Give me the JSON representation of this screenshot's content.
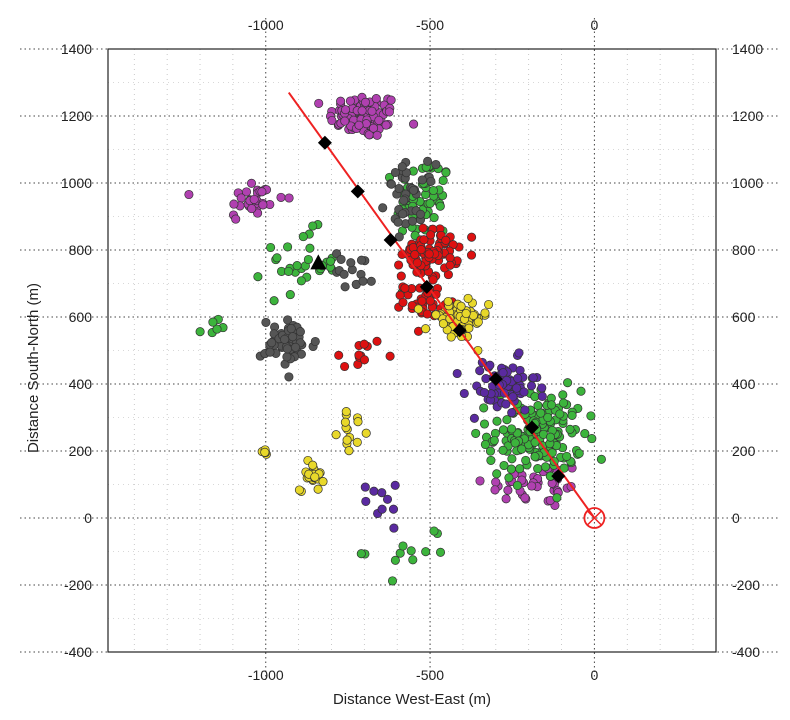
{
  "chart_data": {
    "type": "scatter",
    "xlabel": "Distance West-East (m)",
    "ylabel": "Distance South-North (m)",
    "xlim": [
      -1480,
      370
    ],
    "ylim": [
      -400,
      1400
    ],
    "x_ticks": [
      -1000,
      -500,
      0
    ],
    "y_ticks": [
      -400,
      -200,
      0,
      200,
      400,
      600,
      800,
      1000,
      1200,
      1400
    ],
    "grid": true,
    "grid_style": "dotted",
    "ticks_on_all_sides": true,
    "colors": {
      "purple": "#b040b0",
      "green": "#3cb43c",
      "gray": "#555555",
      "red": "#dd1111",
      "yellow": "#e8d82a",
      "indigo": "#5a2aa0",
      "marker_edge": "#222222",
      "trend_line": "#ee2222"
    },
    "clusters": [
      {
        "color": "purple",
        "center": [
          -700,
          1200
        ],
        "spread": [
          90,
          55
        ],
        "count": 90
      },
      {
        "color": "purple",
        "center": [
          -1040,
          950
        ],
        "spread": [
          80,
          55
        ],
        "count": 30
      },
      {
        "color": "purple",
        "center": [
          -180,
          100
        ],
        "spread": [
          130,
          60
        ],
        "count": 40
      },
      {
        "color": "green",
        "center": [
          -520,
          950
        ],
        "spread": [
          70,
          110
        ],
        "count": 55
      },
      {
        "color": "green",
        "center": [
          -890,
          760
        ],
        "spread": [
          90,
          80
        ],
        "count": 30
      },
      {
        "color": "green",
        "center": [
          -180,
          250
        ],
        "spread": [
          120,
          110
        ],
        "count": 170
      },
      {
        "color": "green",
        "center": [
          -560,
          -90
        ],
        "spread": [
          110,
          70
        ],
        "count": 12
      },
      {
        "color": "green",
        "center": [
          -1150,
          560
        ],
        "spread": [
          40,
          30
        ],
        "count": 6
      },
      {
        "color": "gray",
        "center": [
          -560,
          960
        ],
        "spread": [
          60,
          80
        ],
        "count": 40
      },
      {
        "color": "gray",
        "center": [
          -930,
          520
        ],
        "spread": [
          70,
          60
        ],
        "count": 55
      },
      {
        "color": "gray",
        "center": [
          -730,
          740
        ],
        "spread": [
          50,
          50
        ],
        "count": 15
      },
      {
        "color": "red",
        "center": [
          -500,
          790
        ],
        "spread": [
          70,
          60
        ],
        "count": 80
      },
      {
        "color": "red",
        "center": [
          -520,
          650
        ],
        "spread": [
          50,
          40
        ],
        "count": 35
      },
      {
        "color": "red",
        "center": [
          -710,
          480
        ],
        "spread": [
          60,
          50
        ],
        "count": 12
      },
      {
        "color": "yellow",
        "center": [
          -420,
          590
        ],
        "spread": [
          80,
          50
        ],
        "count": 65
      },
      {
        "color": "yellow",
        "center": [
          -860,
          130
        ],
        "spread": [
          30,
          40
        ],
        "count": 25
      },
      {
        "color": "yellow",
        "center": [
          -730,
          260
        ],
        "spread": [
          40,
          40
        ],
        "count": 14
      },
      {
        "color": "yellow",
        "center": [
          -1000,
          195
        ],
        "spread": [
          15,
          25
        ],
        "count": 5
      },
      {
        "color": "indigo",
        "center": [
          -280,
          390
        ],
        "spread": [
          90,
          70
        ],
        "count": 65
      },
      {
        "color": "indigo",
        "center": [
          -660,
          80
        ],
        "spread": [
          90,
          70
        ],
        "count": 10
      }
    ],
    "trend_line": {
      "start": [
        -930,
        1270
      ],
      "end": [
        0,
        0
      ]
    },
    "diamond_markers": [
      [
        -820,
        1120
      ],
      [
        -720,
        975
      ],
      [
        -620,
        830
      ],
      [
        -510,
        690
      ],
      [
        -410,
        560
      ],
      [
        -300,
        415
      ],
      [
        -190,
        270
      ],
      [
        -110,
        125
      ]
    ],
    "triangle_marker": [
      -840,
      760
    ],
    "origin_marker": [
      0,
      0
    ]
  }
}
